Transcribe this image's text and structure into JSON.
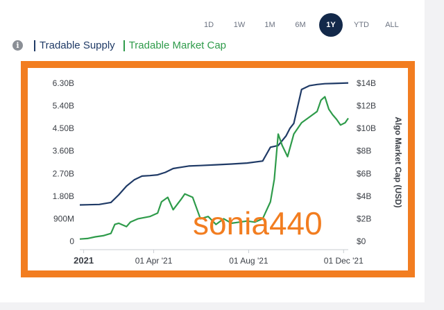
{
  "time_ranges": [
    "1D",
    "1W",
    "1M",
    "6M",
    "1Y",
    "YTD",
    "ALL"
  ],
  "active_range": "1Y",
  "legend": {
    "info_icon": "info-icon",
    "items": [
      {
        "label": "Tradable Supply",
        "color": "#1f3a66"
      },
      {
        "label": "Tradable Market Cap",
        "color": "#2e9b4a"
      }
    ]
  },
  "watermark": "sonia440",
  "colors": {
    "accent": "#13294a",
    "frame": "#f27d20"
  },
  "chart_data": {
    "type": "line",
    "title": "",
    "left_axis": {
      "ticks": [
        "0",
        "900M",
        "1.80B",
        "2.70B",
        "3.60B",
        "4.50B",
        "5.40B",
        "6.30B"
      ],
      "range": [
        0,
        6.3
      ]
    },
    "right_axis": {
      "label": "Algo Market Cap (USD)",
      "ticks": [
        "$0",
        "$2B",
        "$4B",
        "$6B",
        "$8B",
        "$10B",
        "$12B",
        "$14B"
      ],
      "range": [
        0,
        14
      ]
    },
    "x_ticks": [
      {
        "label": "2021",
        "day": 0
      },
      {
        "label": "01 Apr '21",
        "day": 90
      },
      {
        "label": "01 Aug '21",
        "day": 212
      },
      {
        "label": "01 Dec '21",
        "day": 334
      }
    ],
    "x_range": [
      -5,
      340
    ],
    "series": [
      {
        "name": "Tradable Supply",
        "axis": "left",
        "color": "#1f3a66",
        "x": [
          -5,
          20,
          35,
          45,
          55,
          65,
          75,
          85,
          95,
          105,
          115,
          125,
          135,
          150,
          170,
          190,
          210,
          230,
          240,
          250,
          260,
          265,
          270,
          280,
          290,
          300,
          310,
          320,
          330,
          340
        ],
        "y": [
          1.45,
          1.47,
          1.55,
          1.85,
          2.2,
          2.45,
          2.6,
          2.62,
          2.65,
          2.75,
          2.9,
          2.95,
          3.0,
          3.02,
          3.05,
          3.08,
          3.12,
          3.2,
          3.75,
          3.82,
          4.2,
          4.5,
          4.7,
          6.05,
          6.2,
          6.25,
          6.28,
          6.29,
          6.3,
          6.31
        ]
      },
      {
        "name": "Tradable Market Cap",
        "axis": "right",
        "color": "#2e9b4a",
        "x": [
          -5,
          5,
          15,
          25,
          35,
          40,
          45,
          55,
          60,
          70,
          85,
          95,
          100,
          108,
          115,
          125,
          130,
          140,
          150,
          160,
          170,
          180,
          190,
          200,
          210,
          220,
          230,
          240,
          245,
          250,
          255,
          262,
          270,
          280,
          290,
          300,
          305,
          310,
          315,
          320,
          325,
          330,
          336,
          340
        ],
        "y": [
          0.2,
          0.25,
          0.4,
          0.5,
          0.7,
          1.5,
          1.6,
          1.3,
          1.7,
          2.0,
          2.2,
          2.5,
          3.5,
          3.9,
          2.8,
          3.7,
          4.2,
          3.9,
          2.0,
          2.2,
          1.5,
          2.0,
          1.6,
          1.7,
          1.8,
          1.7,
          2.0,
          3.5,
          5.5,
          9.5,
          8.5,
          7.5,
          9.5,
          10.5,
          11.0,
          11.5,
          12.5,
          12.8,
          11.7,
          11.2,
          10.8,
          10.3,
          10.5,
          10.9
        ]
      }
    ],
    "grid": false,
    "legend_position": "top-left"
  }
}
